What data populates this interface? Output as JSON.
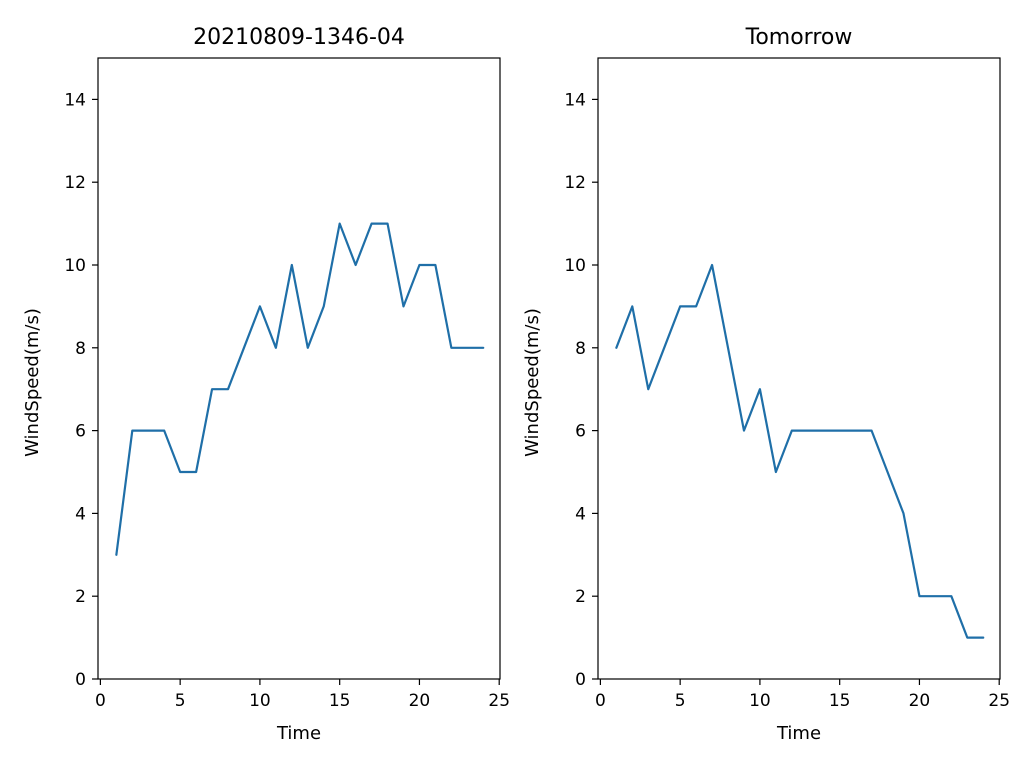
{
  "chart_data": [
    {
      "type": "line",
      "title": "20210809-1346-04",
      "xlabel": "Time",
      "ylabel": "WindSpeed(m/s)",
      "xlim": [
        -0.15,
        25.05
      ],
      "ylim": [
        0,
        15
      ],
      "xticks": [
        "0",
        "5",
        "10",
        "15",
        "20",
        "25"
      ],
      "yticks": [
        "0",
        "2",
        "4",
        "6",
        "8",
        "10",
        "12",
        "14"
      ],
      "grid": false,
      "x": [
        1,
        2,
        3,
        4,
        5,
        6,
        7,
        8,
        9,
        10,
        11,
        12,
        13,
        14,
        15,
        16,
        17,
        18,
        19,
        20,
        21,
        22,
        23,
        24
      ],
      "series": [
        {
          "color": "#1f6fa8",
          "values": [
            3,
            6,
            6,
            6,
            5,
            5,
            7,
            7,
            8,
            9,
            8,
            10,
            8,
            9,
            11,
            10,
            11,
            11,
            9,
            10,
            10,
            8,
            8,
            8
          ]
        }
      ]
    },
    {
      "type": "line",
      "title": "Tomorrow",
      "xlabel": "Time",
      "ylabel": "WindSpeed(m/s)",
      "xlim": [
        -0.15,
        25.05
      ],
      "ylim": [
        0,
        15
      ],
      "xticks": [
        "0",
        "5",
        "10",
        "15",
        "20",
        "25"
      ],
      "yticks": [
        "0",
        "2",
        "4",
        "6",
        "8",
        "10",
        "12",
        "14"
      ],
      "grid": false,
      "x": [
        1,
        2,
        3,
        4,
        5,
        6,
        7,
        8,
        9,
        10,
        11,
        12,
        13,
        14,
        15,
        16,
        17,
        18,
        19,
        20,
        21,
        22,
        23,
        24
      ],
      "series": [
        {
          "color": "#1f6fa8",
          "values": [
            8,
            9,
            7,
            8,
            9,
            9,
            10,
            8,
            6,
            7,
            5,
            6,
            6,
            6,
            6,
            6,
            6,
            5,
            4,
            2,
            2,
            2,
            1,
            1
          ]
        }
      ]
    }
  ]
}
